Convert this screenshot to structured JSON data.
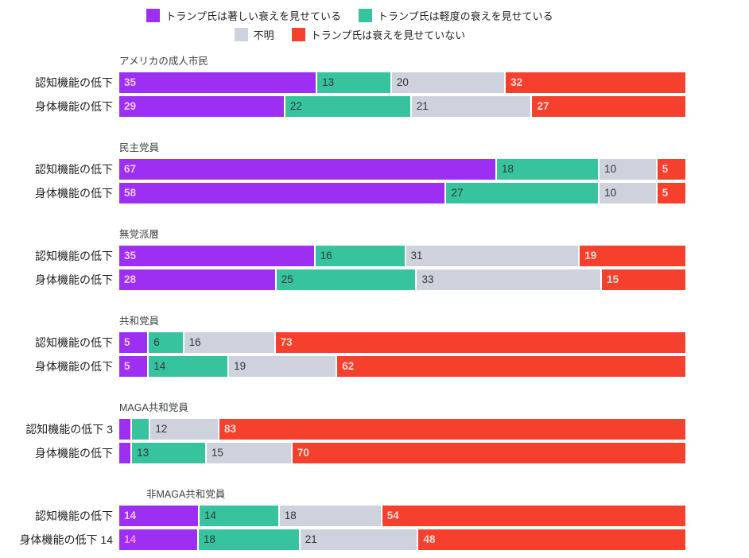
{
  "legend": {
    "rows": [
      [
        {
          "label": "トランプ氏は著しい衰えを見せている",
          "color": "#9C2FF1"
        },
        {
          "label": "トランプ氏は軽度の衰えを見せている",
          "color": "#36C39D"
        }
      ],
      [
        {
          "label": "不明",
          "color": "#CDD2DC"
        },
        {
          "label": "トランプ氏は衰えを見せていない",
          "color": "#F4402C"
        }
      ]
    ]
  },
  "colors": {
    "series": [
      "#9C2FF1",
      "#36C39D",
      "#CDD2DC",
      "#F4402C"
    ],
    "value_text": [
      "#F0C9F3",
      "#33383D",
      "#33383D",
      "#F6DCD8"
    ],
    "value_bold": [
      true,
      false,
      false,
      true
    ],
    "background": "#FFFFFF"
  },
  "chart_data": {
    "type": "bar",
    "orientation": "horizontal",
    "stacked": true,
    "unit": "percent",
    "series_names": [
      "トランプ氏は著しい衰えを見せている",
      "トランプ氏は軽度の衰えを見せている",
      "不明",
      "トランプ氏は衰えを見せていない"
    ],
    "groups": [
      {
        "title": "アメリカの成人市民",
        "rows": [
          {
            "label": "認知機能の低下",
            "segments": [
              {
                "value": 35,
                "label": "35"
              },
              {
                "value": 13,
                "label": "13"
              },
              {
                "value": 20,
                "label": "20"
              },
              {
                "value": 32,
                "label": "32"
              }
            ]
          },
          {
            "label": "身体機能の低下",
            "segments": [
              {
                "value": 29,
                "label": "29"
              },
              {
                "value": 22,
                "label": "22"
              },
              {
                "value": 21,
                "label": "21"
              },
              {
                "value": 27,
                "label": "27"
              }
            ]
          }
        ]
      },
      {
        "title": "民主党員",
        "rows": [
          {
            "label": "認知機能の低下",
            "segments": [
              {
                "value": 67,
                "label": "67"
              },
              {
                "value": 18,
                "label": "18"
              },
              {
                "value": 10,
                "label": "10"
              },
              {
                "value": 5,
                "label": "5"
              }
            ]
          },
          {
            "label": "身体機能の低下",
            "segments": [
              {
                "value": 58,
                "label": "58"
              },
              {
                "value": 27,
                "label": "27"
              },
              {
                "value": 10,
                "label": "10"
              },
              {
                "value": 5,
                "label": "5"
              }
            ]
          }
        ]
      },
      {
        "title": "無党派層",
        "rows": [
          {
            "label": "認知機能の低下",
            "segments": [
              {
                "value": 35,
                "label": "35"
              },
              {
                "value": 16,
                "label": "16"
              },
              {
                "value": 31,
                "label": "31"
              },
              {
                "value": 19,
                "label": "19"
              }
            ]
          },
          {
            "label": "身体機能の低下",
            "segments": [
              {
                "value": 28,
                "label": "28"
              },
              {
                "value": 25,
                "label": "25"
              },
              {
                "value": 33,
                "label": "33"
              },
              {
                "value": 15,
                "label": "15"
              }
            ]
          }
        ]
      },
      {
        "title": "共和党員",
        "rows": [
          {
            "label": "認知機能の低下",
            "segments": [
              {
                "value": 5,
                "label": "5"
              },
              {
                "value": 6,
                "label": "6"
              },
              {
                "value": 16,
                "label": "16"
              },
              {
                "value": 73,
                "label": "73"
              }
            ]
          },
          {
            "label": "身体機能の低下",
            "segments": [
              {
                "value": 5,
                "label": "5"
              },
              {
                "value": 14,
                "label": "14"
              },
              {
                "value": 19,
                "label": "19"
              },
              {
                "value": 62,
                "label": "62"
              }
            ]
          }
        ]
      },
      {
        "title": "MAGA共和党員",
        "rows": [
          {
            "label": "認知機能の低下 3",
            "segments": [
              {
                "value": 2,
                "label": ""
              },
              {
                "value": 3,
                "label": ""
              },
              {
                "value": 12,
                "label": "12"
              },
              {
                "value": 83,
                "label": "83"
              }
            ]
          },
          {
            "label": "身体機能の低下",
            "segments": [
              {
                "value": 2,
                "label": ""
              },
              {
                "value": 13,
                "label": "13"
              },
              {
                "value": 15,
                "label": "15"
              },
              {
                "value": 70,
                "label": "70"
              }
            ]
          }
        ]
      },
      {
        "title": "非MAGA共和党員",
        "title_indent": 34,
        "rows": [
          {
            "label": "認知機能の低下",
            "segments": [
              {
                "value": 14,
                "label": "14"
              },
              {
                "value": 14,
                "label": "14"
              },
              {
                "value": 18,
                "label": "18"
              },
              {
                "value": 54,
                "label": "54"
              }
            ]
          },
          {
            "label": "身体機能の低下 14",
            "segments": [
              {
                "value": 14,
                "label": "14",
                "label_color": "#FF8FD9"
              },
              {
                "value": 18,
                "label": "18"
              },
              {
                "value": 21,
                "label": "21"
              },
              {
                "value": 48,
                "label": "48"
              }
            ]
          }
        ]
      }
    ]
  }
}
